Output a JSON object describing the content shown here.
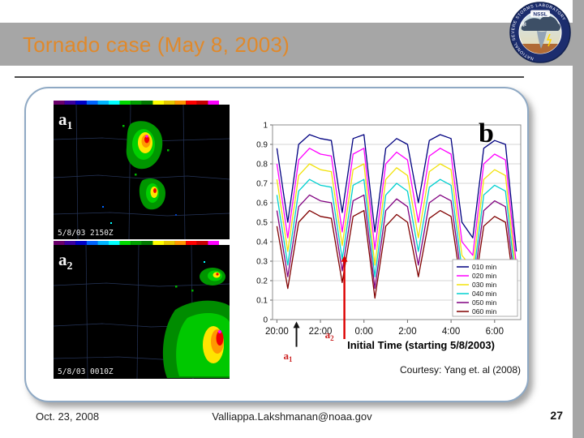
{
  "header": {
    "title": "Tornado case (May 8, 2003)"
  },
  "logo": {
    "acronym": "NSSL",
    "ring_text": "NATIONAL SEVERE STORMS LABORATORY"
  },
  "panel": {
    "courtesy": "Courtesy: Yang et. al (2008)"
  },
  "radars": [
    {
      "label_base": "a",
      "label_sub": "1",
      "timestamp": "5/8/03 2150Z"
    },
    {
      "label_base": "a",
      "label_sub": "2",
      "timestamp": "5/8/03 0010Z"
    }
  ],
  "chart_data": {
    "type": "line",
    "panel_label": "b",
    "xlabel": "Initial Time (starting 5/8/2003)",
    "ylim": [
      0,
      1
    ],
    "xlim": [
      19.8,
      31.2
    ],
    "grid": true,
    "legend_position": "inside-lower-right",
    "y_tick_labels": [
      "1",
      "0.9",
      "0.8",
      "0.7",
      "0.6",
      "0.5",
      "0.4",
      "0.3",
      "0.2",
      "0.1",
      "0"
    ],
    "x_tick_hours": [
      20,
      22,
      24,
      26,
      28,
      30
    ],
    "x_tick_labels": [
      "20:00",
      "22:00",
      "0:00",
      "2:00",
      "4:00",
      "6:00"
    ],
    "x_hours": [
      20,
      20.5,
      21,
      21.5,
      22,
      22.5,
      23,
      23.5,
      24,
      24.5,
      25,
      25.5,
      26,
      26.5,
      27,
      27.5,
      28,
      28.5,
      29,
      29.5,
      30,
      30.5,
      31
    ],
    "series": [
      {
        "name": "010 min",
        "color": "#000080",
        "values": [
          0.88,
          0.5,
          0.9,
          0.95,
          0.93,
          0.92,
          0.55,
          0.93,
          0.95,
          0.45,
          0.88,
          0.93,
          0.9,
          0.6,
          0.92,
          0.95,
          0.93,
          0.5,
          0.42,
          0.88,
          0.92,
          0.9,
          0.35
        ]
      },
      {
        "name": "020 min",
        "color": "#ff00ff",
        "values": [
          0.8,
          0.42,
          0.82,
          0.88,
          0.85,
          0.84,
          0.45,
          0.85,
          0.88,
          0.36,
          0.8,
          0.86,
          0.82,
          0.5,
          0.84,
          0.88,
          0.85,
          0.4,
          0.33,
          0.8,
          0.85,
          0.82,
          0.28
        ]
      },
      {
        "name": "030 min",
        "color": "#f2e20a",
        "values": [
          0.72,
          0.35,
          0.74,
          0.8,
          0.77,
          0.76,
          0.38,
          0.77,
          0.8,
          0.28,
          0.72,
          0.78,
          0.74,
          0.42,
          0.76,
          0.8,
          0.77,
          0.33,
          0.26,
          0.72,
          0.77,
          0.74,
          0.22
        ]
      },
      {
        "name": "040 min",
        "color": "#00d0d0",
        "values": [
          0.64,
          0.28,
          0.66,
          0.72,
          0.69,
          0.68,
          0.31,
          0.69,
          0.72,
          0.22,
          0.64,
          0.7,
          0.66,
          0.35,
          0.68,
          0.72,
          0.69,
          0.26,
          0.2,
          0.64,
          0.69,
          0.66,
          0.17
        ]
      },
      {
        "name": "050 min",
        "color": "#800080",
        "values": [
          0.56,
          0.22,
          0.58,
          0.64,
          0.61,
          0.6,
          0.25,
          0.61,
          0.64,
          0.16,
          0.56,
          0.62,
          0.58,
          0.28,
          0.6,
          0.64,
          0.61,
          0.2,
          0.15,
          0.56,
          0.61,
          0.58,
          0.12
        ]
      },
      {
        "name": "060 min",
        "color": "#800000",
        "values": [
          0.48,
          0.16,
          0.5,
          0.56,
          0.53,
          0.52,
          0.19,
          0.53,
          0.56,
          0.11,
          0.48,
          0.54,
          0.5,
          0.22,
          0.52,
          0.56,
          0.53,
          0.15,
          0.1,
          0.48,
          0.53,
          0.5,
          0.08
        ]
      }
    ],
    "annotations": [
      {
        "label_base": "a",
        "label_sub": "1",
        "x_hour": 20.9,
        "arrow_color": "#111111",
        "arrow_width": 2,
        "tip_value": -0.01,
        "tail_value": -0.14,
        "label_value": -0.205,
        "label_dx": -16,
        "label_color": "#cc2222"
      },
      {
        "label_base": "a",
        "label_sub": "2",
        "x_hour": 23.1,
        "arrow_color": "#dd0000",
        "arrow_width": 2.4,
        "tip_value": 0.33,
        "tail_value": -0.1,
        "label_value": -0.095,
        "label_dx": -24,
        "label_color": "#cc2222"
      }
    ]
  },
  "footer": {
    "date": "Oct. 23, 2008",
    "email": "Valliappa.Lakshmanan@noaa.gov",
    "page": "27"
  }
}
